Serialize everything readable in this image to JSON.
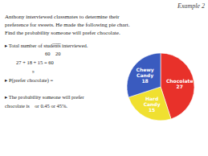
{
  "chart_data": {
    "type": "pie",
    "title": "Example 2",
    "categories": [
      "Chocolate",
      "Hard\nCandy",
      "Chewy\nCandy"
    ],
    "values": [
      27,
      15,
      18
    ],
    "colors": [
      "#e8312a",
      "#f0e030",
      "#3a5bbf"
    ],
    "data_labels": true,
    "legend": false,
    "annotations": [
      "Anthony interviewed classmates to determine their\npreference for sweets. He made the following pie chart.\nFind the probability someone will prefer chocolate.",
      "▸ Total number of stude̅n̅t̅s̅ interviewed.",
      "60    20",
      "27 + 18 + 15 = 60",
      "9",
      "▸ P(prefer chocolate) =",
      "▸ The probability someone will prefer",
      "chocolate is    or 0.45 or 45%."
    ]
  }
}
